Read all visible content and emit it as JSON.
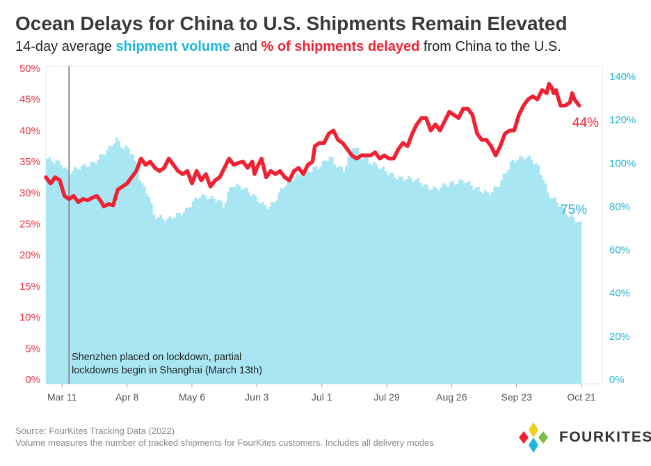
{
  "header": {
    "title": "Ocean Delays for China to U.S. Shipments Remain Elevated",
    "subtitle_prefix": "14-day average ",
    "subtitle_volume": "shipment volume",
    "subtitle_and": " and ",
    "subtitle_delayed": "% of shipments delayed",
    "subtitle_suffix": " from China to the U.S."
  },
  "chart_data": {
    "type": "bar+line",
    "title": "Ocean Delays for China to U.S. Shipments Remain Elevated",
    "left_axis": {
      "label": "% of shipments delayed",
      "ticks": [
        "0%",
        "5%",
        "10%",
        "15%",
        "20%",
        "25%",
        "30%",
        "35%",
        "40%",
        "45%",
        "50%"
      ],
      "range": [
        0,
        50
      ]
    },
    "right_axis": {
      "label": "shipment volume",
      "ticks": [
        "0%",
        "20%",
        "40%",
        "60%",
        "80%",
        "100%",
        "120%",
        "140%"
      ],
      "range": [
        0,
        140
      ]
    },
    "x_ticks": [
      "Mar 11",
      "Apr 8",
      "May 6",
      "Jun 3",
      "Jul 1",
      "Jul 29",
      "Aug 26",
      "Sep 23",
      "Oct 21"
    ],
    "days_total": 240,
    "x_tick_days": [
      7,
      35,
      63,
      91,
      119,
      147,
      175,
      203,
      231
    ],
    "volume_series_right_axis_pct": [
      [
        0,
        102
      ],
      [
        6,
        100
      ],
      [
        8,
        97
      ],
      [
        10,
        96
      ],
      [
        14,
        98
      ],
      [
        20,
        100
      ],
      [
        24,
        104
      ],
      [
        27,
        107
      ],
      [
        29,
        110
      ],
      [
        30,
        111
      ],
      [
        33,
        107
      ],
      [
        35,
        107
      ],
      [
        37,
        104
      ],
      [
        39,
        96
      ],
      [
        41,
        90
      ],
      [
        44,
        85
      ],
      [
        46,
        76
      ],
      [
        48,
        75
      ],
      [
        52,
        74
      ],
      [
        56,
        76
      ],
      [
        60,
        78
      ],
      [
        62,
        81
      ],
      [
        64,
        83
      ],
      [
        66,
        85
      ],
      [
        70,
        84
      ],
      [
        74,
        83
      ],
      [
        76,
        80
      ],
      [
        78,
        86
      ],
      [
        80,
        90
      ],
      [
        84,
        89
      ],
      [
        88,
        86
      ],
      [
        90,
        84
      ],
      [
        92,
        82
      ],
      [
        94,
        80
      ],
      [
        96,
        80
      ],
      [
        98,
        82
      ],
      [
        100,
        86
      ],
      [
        102,
        89
      ],
      [
        104,
        92
      ],
      [
        108,
        94
      ],
      [
        112,
        96
      ],
      [
        116,
        98
      ],
      [
        118,
        99
      ],
      [
        120,
        101
      ],
      [
        122,
        103
      ],
      [
        124,
        100
      ],
      [
        126,
        98
      ],
      [
        128,
        97
      ],
      [
        130,
        102
      ],
      [
        132,
        108
      ],
      [
        134,
        106
      ],
      [
        136,
        103
      ],
      [
        140,
        100
      ],
      [
        144,
        98
      ],
      [
        148,
        95
      ],
      [
        152,
        93
      ],
      [
        156,
        93
      ],
      [
        160,
        92
      ],
      [
        164,
        89
      ],
      [
        168,
        88
      ],
      [
        172,
        90
      ],
      [
        176,
        91
      ],
      [
        180,
        92
      ],
      [
        184,
        89
      ],
      [
        188,
        87
      ],
      [
        190,
        86
      ],
      [
        192,
        87
      ],
      [
        194,
        89
      ],
      [
        196,
        92
      ],
      [
        198,
        96
      ],
      [
        200,
        100
      ],
      [
        203,
        102
      ],
      [
        206,
        103
      ],
      [
        209,
        102
      ],
      [
        212,
        98
      ],
      [
        214,
        93
      ],
      [
        216,
        86
      ],
      [
        218,
        84
      ],
      [
        220,
        82
      ],
      [
        222,
        80
      ],
      [
        224,
        77
      ],
      [
        226,
        75
      ],
      [
        228,
        74
      ],
      [
        230,
        72
      ],
      [
        232,
        73
      ],
      [
        234,
        76
      ],
      [
        236,
        75
      ],
      [
        240,
        75
      ]
    ],
    "delayed_series_left_axis_pct": [
      [
        0,
        32.5
      ],
      [
        2,
        31.5
      ],
      [
        4,
        32.5
      ],
      [
        6,
        32.0
      ],
      [
        8,
        29.5
      ],
      [
        10,
        29.0
      ],
      [
        12,
        29.5
      ],
      [
        14,
        28.5
      ],
      [
        16,
        29.0
      ],
      [
        18,
        28.8
      ],
      [
        20,
        29.2
      ],
      [
        22,
        29.5
      ],
      [
        24,
        28.5
      ],
      [
        25,
        27.8
      ],
      [
        27,
        28.2
      ],
      [
        29,
        28.0
      ],
      [
        31,
        30.5
      ],
      [
        33,
        31.0
      ],
      [
        35,
        31.5
      ],
      [
        37,
        32.5
      ],
      [
        39,
        33.5
      ],
      [
        41,
        35.5
      ],
      [
        43,
        34.5
      ],
      [
        45,
        35.0
      ],
      [
        47,
        34.0
      ],
      [
        49,
        33.5
      ],
      [
        51,
        34.0
      ],
      [
        53,
        35.5
      ],
      [
        55,
        34.5
      ],
      [
        57,
        33.5
      ],
      [
        59,
        33.0
      ],
      [
        61,
        33.5
      ],
      [
        63,
        31.5
      ],
      [
        65,
        33.5
      ],
      [
        67,
        32.0
      ],
      [
        69,
        33.0
      ],
      [
        71,
        31.0
      ],
      [
        73,
        32.0
      ],
      [
        75,
        32.5
      ],
      [
        77,
        34.0
      ],
      [
        79,
        35.5
      ],
      [
        81,
        34.5
      ],
      [
        83,
        34.8
      ],
      [
        85,
        35.0
      ],
      [
        87,
        34.0
      ],
      [
        89,
        35.0
      ],
      [
        90,
        33.0
      ],
      [
        91,
        34.0
      ],
      [
        93,
        35.5
      ],
      [
        95,
        32.5
      ],
      [
        97,
        33.5
      ],
      [
        99,
        33.0
      ],
      [
        101,
        33.5
      ],
      [
        103,
        32.5
      ],
      [
        105,
        32.0
      ],
      [
        107,
        33.5
      ],
      [
        109,
        34.0
      ],
      [
        111,
        33.0
      ],
      [
        113,
        34.5
      ],
      [
        115,
        35.0
      ],
      [
        116,
        37.5
      ],
      [
        118,
        38.0
      ],
      [
        120,
        38.0
      ],
      [
        122,
        39.5
      ],
      [
        124,
        40.0
      ],
      [
        126,
        38.5
      ],
      [
        128,
        38.0
      ],
      [
        130,
        37.0
      ],
      [
        132,
        36.0
      ],
      [
        134,
        35.5
      ],
      [
        136,
        36.0
      ],
      [
        138,
        36.0
      ],
      [
        140,
        36.0
      ],
      [
        142,
        36.5
      ],
      [
        144,
        35.5
      ],
      [
        146,
        36.0
      ],
      [
        148,
        35.5
      ],
      [
        150,
        35.5
      ],
      [
        152,
        37.0
      ],
      [
        154,
        38.0
      ],
      [
        156,
        37.5
      ],
      [
        158,
        39.5
      ],
      [
        160,
        41.0
      ],
      [
        162,
        42.0
      ],
      [
        164,
        42.0
      ],
      [
        166,
        40.0
      ],
      [
        168,
        41.0
      ],
      [
        170,
        40.0
      ],
      [
        172,
        41.5
      ],
      [
        174,
        43.0
      ],
      [
        176,
        42.5
      ],
      [
        178,
        42.0
      ],
      [
        180,
        43.5
      ],
      [
        182,
        43.5
      ],
      [
        184,
        42.5
      ],
      [
        186,
        39.5
      ],
      [
        188,
        38.5
      ],
      [
        190,
        38.5
      ],
      [
        192,
        37.5
      ],
      [
        194,
        36.0
      ],
      [
        196,
        37.5
      ],
      [
        198,
        39.5
      ],
      [
        200,
        40.0
      ],
      [
        202,
        40.0
      ],
      [
        204,
        42.5
      ],
      [
        206,
        44.0
      ],
      [
        208,
        45.0
      ],
      [
        210,
        45.5
      ],
      [
        212,
        45.0
      ],
      [
        214,
        46.5
      ],
      [
        216,
        46.0
      ],
      [
        217,
        47.5
      ],
      [
        218,
        47.0
      ],
      [
        219,
        46.0
      ],
      [
        220,
        46.5
      ],
      [
        222,
        44.0
      ],
      [
        224,
        44.0
      ],
      [
        226,
        44.5
      ],
      [
        227,
        46.0
      ],
      [
        228,
        45.0
      ],
      [
        230,
        44.0
      ]
    ],
    "end_labels": {
      "delayed": "44%",
      "volume": "75%"
    },
    "annotation": {
      "day": 8,
      "line1": "Shenzhen placed on lockdown, partial",
      "line2": "lockdowns begin in Shanghai (March 13th)"
    },
    "colors": {
      "volume": "#a9e6f4",
      "delayed": "#ee2233",
      "left_axis": "#ee3344",
      "right_axis": "#20b4d6",
      "annotation_line": "#8c8c8c"
    }
  },
  "footer": {
    "source": "Source: FourKites Tracking Data (2022)",
    "note": "Volume measures the number of tracked shipments for FourKites customers. Includes all delivery modes",
    "brand": "FOURKITES"
  }
}
